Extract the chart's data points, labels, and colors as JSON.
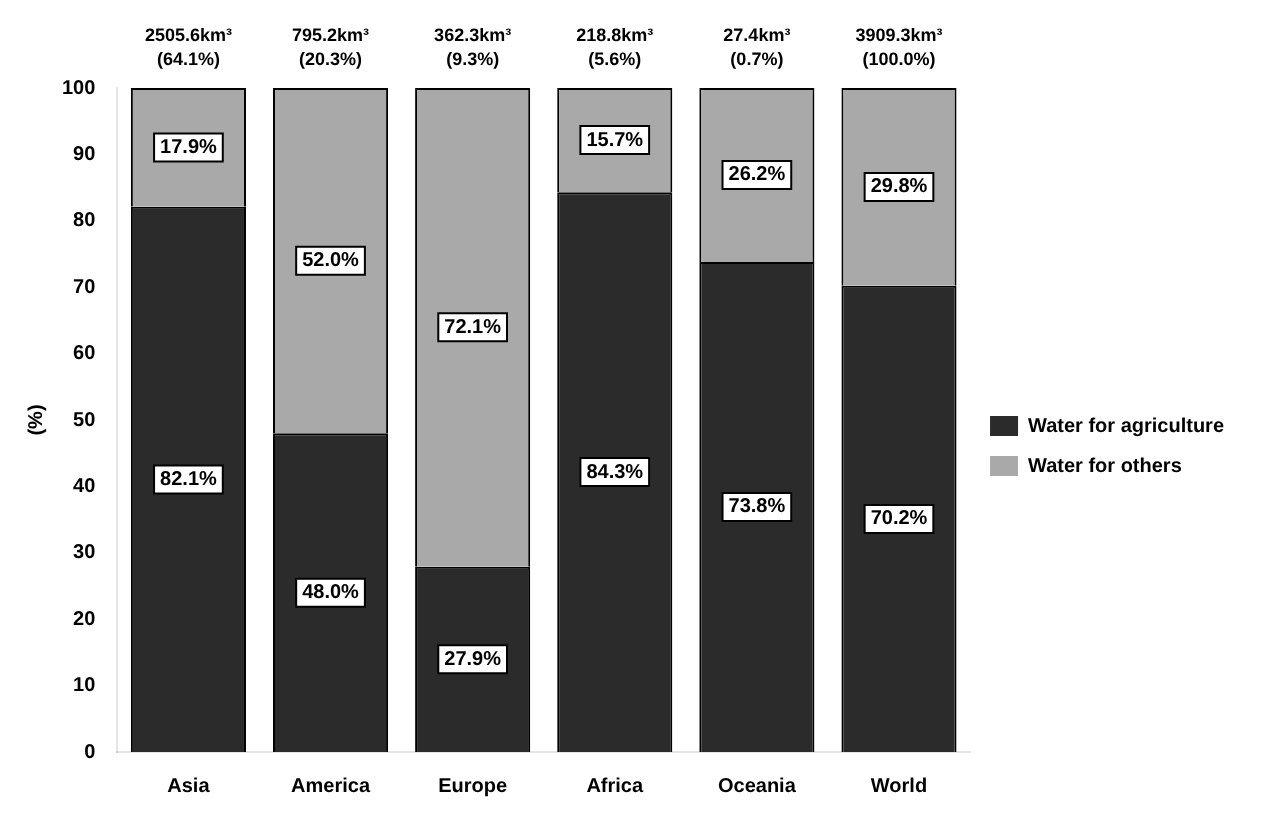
{
  "chart_data": {
    "type": "bar",
    "stacked": true,
    "ylabel": "(%)",
    "categories": [
      "Asia",
      "America",
      "Europe",
      "Africa",
      "Oceania",
      "World"
    ],
    "series": [
      {
        "name": "Water for agriculture",
        "color": "#2b2b2b",
        "values": [
          82.1,
          48.0,
          27.9,
          84.3,
          73.8,
          70.2
        ],
        "value_labels": [
          "82.1%",
          "48.0%",
          "27.9%",
          "84.3%",
          "73.8%",
          "70.2%"
        ]
      },
      {
        "name": "Water for others",
        "color": "#a9a9a9",
        "values": [
          17.9,
          52.0,
          72.1,
          15.7,
          26.2,
          29.8
        ],
        "value_labels": [
          "17.9%",
          "52.0%",
          "72.1%",
          "15.7%",
          "26.2%",
          "29.8%"
        ]
      }
    ],
    "ylim": [
      0,
      100
    ],
    "yticks": [
      0,
      10,
      20,
      30,
      40,
      50,
      60,
      70,
      80,
      90,
      100
    ],
    "grid": false,
    "legend": "right",
    "annotations": [
      "2505.6km³ (64.1%)",
      "795.2km³ (20.3%)",
      "362.3km³ (9.3%)",
      "218.8km³ (5.6%)",
      "27.4km³ (0.7%)",
      "3909.3km³ (100.0%)"
    ]
  }
}
